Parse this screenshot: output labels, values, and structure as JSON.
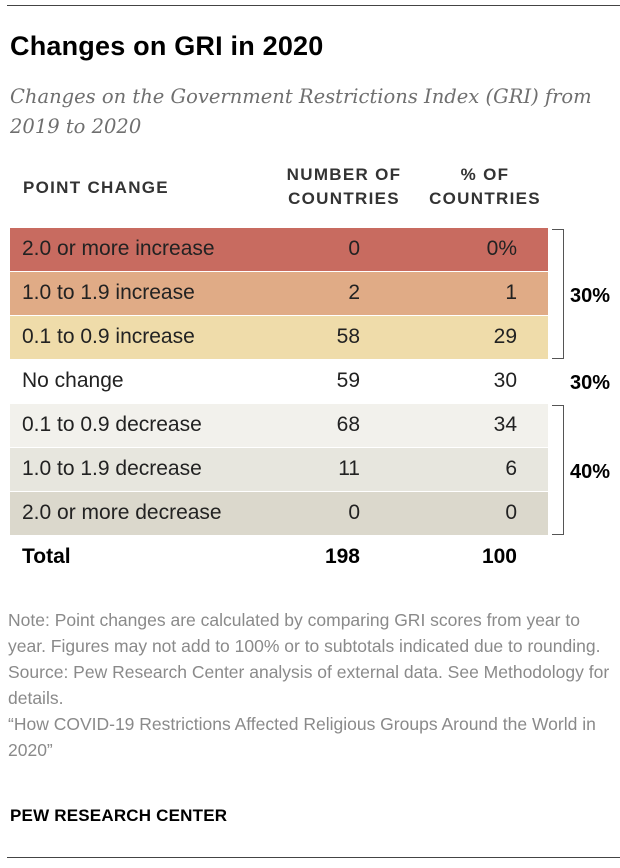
{
  "title": "Changes on GRI in 2020",
  "subtitle": "Changes on the Government Restrictions Index (GRI) from 2019 to 2020",
  "headers": {
    "point_change": "POINT CHANGE",
    "number_line1": "NUMBER OF",
    "number_line2": "COUNTRIES",
    "pct_line1": "% OF",
    "pct_line2": "COUNTRIES"
  },
  "rows": [
    {
      "label": "2.0 or more increase",
      "number": "0",
      "percent": "0%",
      "color": "#c86b60"
    },
    {
      "label": "1.0 to 1.9 increase",
      "number": "2",
      "percent": "1",
      "color": "#e0ab86"
    },
    {
      "label": "0.1 to 0.9 increase",
      "number": "58",
      "percent": "29",
      "color": "#efdcaa"
    },
    {
      "label": "No change",
      "number": "59",
      "percent": "30",
      "color": "#ffffff"
    },
    {
      "label": "0.1 to 0.9 decrease",
      "number": "68",
      "percent": "34",
      "color": "#f2f1ec"
    },
    {
      "label": "1.0 to 1.9 decrease",
      "number": "11",
      "percent": "6",
      "color": "#e7e6de"
    },
    {
      "label": "2.0 or more decrease",
      "number": "0",
      "percent": "0",
      "color": "#dbd8cc"
    }
  ],
  "total": {
    "label": "Total",
    "number": "198",
    "percent": "100"
  },
  "groups": {
    "increase": "30%",
    "no_change": "30%",
    "decrease": "40%"
  },
  "notes": {
    "note": "Note: Point changes are calculated by comparing GRI scores from year to year. Figures may not add to 100% or to subtotals indicated due to rounding.",
    "source": "Source: Pew Research Center analysis of external data. See Methodology for details.",
    "report": "“How COVID-19 Restrictions Affected Religious Groups Around the World in 2020”"
  },
  "brand": "PEW RESEARCH CENTER",
  "chart_data": {
    "type": "table",
    "title": "Changes on GRI in 2020",
    "columns": [
      "POINT CHANGE",
      "NUMBER OF COUNTRIES",
      "% OF COUNTRIES"
    ],
    "categories": [
      "2.0 or more increase",
      "1.0 to 1.9 increase",
      "0.1 to 0.9 increase",
      "No change",
      "0.1 to 0.9 decrease",
      "1.0 to 1.9 decrease",
      "2.0 or more decrease"
    ],
    "series": [
      {
        "name": "NUMBER OF COUNTRIES",
        "values": [
          0,
          2,
          58,
          59,
          68,
          11,
          0
        ]
      },
      {
        "name": "% OF COUNTRIES",
        "values": [
          0,
          1,
          29,
          30,
          34,
          6,
          0
        ]
      }
    ],
    "totals": {
      "NUMBER OF COUNTRIES": 198,
      "% OF COUNTRIES": 100
    },
    "group_subtotals": [
      {
        "rows": [
          "2.0 or more increase",
          "1.0 to 1.9 increase",
          "0.1 to 0.9 increase"
        ],
        "value": "30%"
      },
      {
        "rows": [
          "No change"
        ],
        "value": "30%"
      },
      {
        "rows": [
          "0.1 to 0.9 decrease",
          "1.0 to 1.9 decrease",
          "2.0 or more decrease"
        ],
        "value": "40%"
      }
    ]
  }
}
